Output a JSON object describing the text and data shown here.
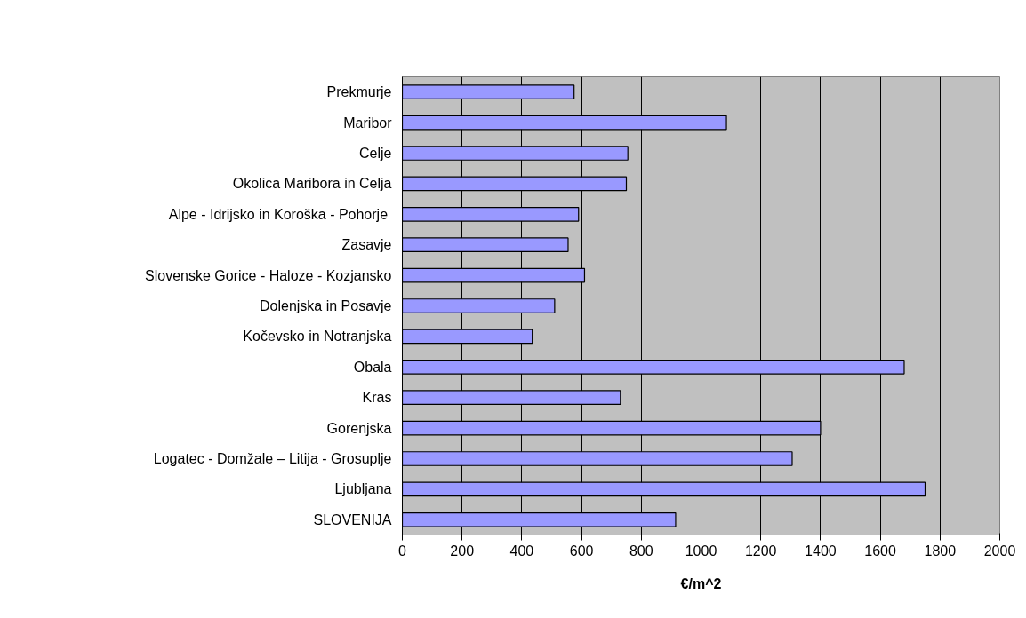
{
  "chart_data": {
    "type": "bar",
    "orientation": "horizontal",
    "xlabel": "€/m^2",
    "categories": [
      "Prekmurje",
      "Maribor",
      "Celje",
      "Okolica Maribora in Celja",
      "Alpe - Idrijsko in Koroška - Pohorje ",
      "Zasavje",
      "Slovenske Gorice - Haloze - Kozjansko",
      "Dolenjska in Posavje",
      "Kočevsko in Notranjska",
      "Obala",
      "Kras",
      "Gorenjska",
      "Logatec - Domžale – Litija - Grosuplje",
      "Ljubljana",
      "SLOVENIJA"
    ],
    "values": [
      575,
      1085,
      755,
      750,
      590,
      555,
      610,
      510,
      435,
      1680,
      730,
      1400,
      1305,
      1750,
      915
    ],
    "color": "#9999ff",
    "xlim": [
      0,
      2000
    ],
    "xticks": [
      0,
      200,
      400,
      600,
      800,
      1000,
      1200,
      1400,
      1600,
      1800,
      2000
    ],
    "grid": "x"
  }
}
